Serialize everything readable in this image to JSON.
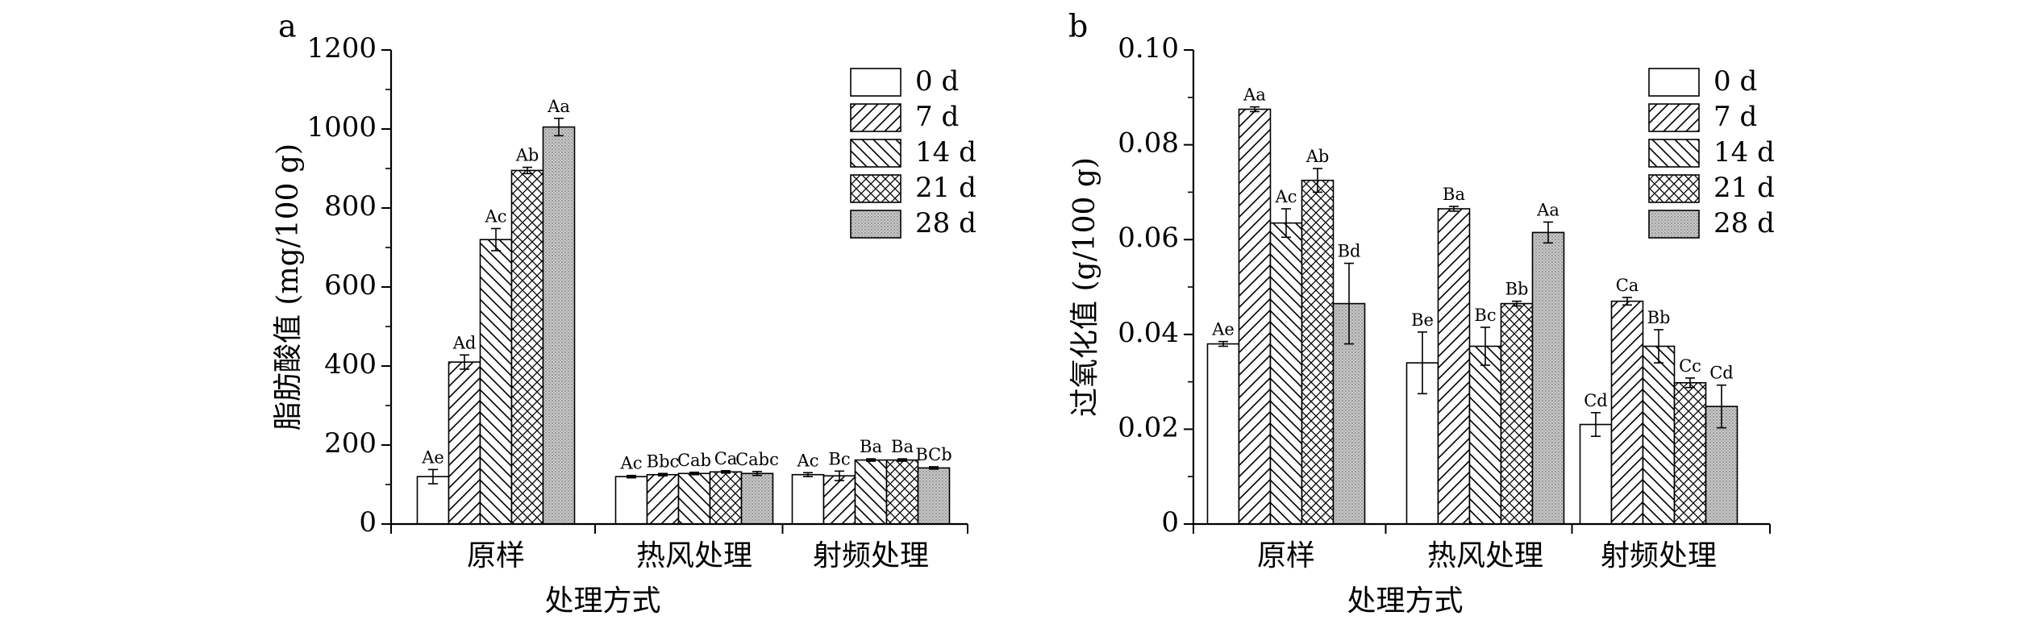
{
  "chart_data": [
    {
      "type": "bar",
      "panel_label": "a",
      "categories": [
        "原样",
        "热风处理",
        "射频处理"
      ],
      "xlabel": "处理方式",
      "ylabel": "脂肪酸值 (mg/100 g)",
      "ylim": [
        0,
        1200
      ],
      "yticks": [
        "0",
        "200",
        "400",
        "600",
        "800",
        "1000",
        "1200"
      ],
      "ytick_values": [
        0,
        200,
        400,
        600,
        800,
        1000,
        1200
      ],
      "legend_position": "top-right",
      "series": [
        {
          "name": "0 d",
          "values": [
            120,
            120,
            125
          ],
          "errors": [
            18,
            3,
            5
          ],
          "letters": [
            "Ae",
            "Ac",
            "Ac"
          ],
          "fill": "white"
        },
        {
          "name": "7 d",
          "values": [
            410,
            125,
            122
          ],
          "errors": [
            18,
            3,
            12
          ],
          "letters": [
            "Ad",
            "Bbc",
            "Bc"
          ],
          "fill": "diag-right"
        },
        {
          "name": "14 d",
          "values": [
            720,
            128,
            162
          ],
          "errors": [
            28,
            3,
            3
          ],
          "letters": [
            "Ac",
            "Cab",
            "Ba"
          ],
          "fill": "diag-left"
        },
        {
          "name": "21 d",
          "values": [
            895,
            132,
            162
          ],
          "errors": [
            8,
            3,
            3
          ],
          "letters": [
            "Ab",
            "Ca",
            "Ba"
          ],
          "fill": "cross"
        },
        {
          "name": "28 d",
          "values": [
            1005,
            128,
            142
          ],
          "errors": [
            22,
            5,
            3
          ],
          "letters": [
            "Aa",
            "Cabc",
            "BCb"
          ],
          "fill": "gray"
        }
      ]
    },
    {
      "type": "bar",
      "panel_label": "b",
      "categories": [
        "原样",
        "热风处理",
        "射频处理"
      ],
      "xlabel": "处理方式",
      "ylabel": "过氧化值 (g/100 g)",
      "ylim": [
        0,
        0.1
      ],
      "yticks": [
        "0",
        "0.02",
        "0.04",
        "0.06",
        "0.08",
        "0.10"
      ],
      "ytick_values": [
        0,
        0.02,
        0.04,
        0.06,
        0.08,
        0.1
      ],
      "legend_position": "top-right",
      "series": [
        {
          "name": "0 d",
          "values": [
            0.038,
            0.034,
            0.021
          ],
          "errors": [
            0.0005,
            0.0065,
            0.0025
          ],
          "letters": [
            "Ae",
            "Be",
            "Cd"
          ],
          "fill": "white"
        },
        {
          "name": "7 d",
          "values": [
            0.0875,
            0.0665,
            0.047
          ],
          "errors": [
            0.0005,
            0.0005,
            0.0008
          ],
          "letters": [
            "Aa",
            "Ba",
            "Ca"
          ],
          "fill": "diag-right"
        },
        {
          "name": "14 d",
          "values": [
            0.0635,
            0.0375,
            0.0375
          ],
          "errors": [
            0.003,
            0.004,
            0.0035
          ],
          "letters": [
            "Ac",
            "Bc",
            "Bb"
          ],
          "fill": "diag-left"
        },
        {
          "name": "21 d",
          "values": [
            0.0725,
            0.0465,
            0.0298
          ],
          "errors": [
            0.0025,
            0.0005,
            0.001
          ],
          "letters": [
            "Ab",
            "Bb",
            "Cc"
          ],
          "fill": "cross"
        },
        {
          "name": "28 d",
          "values": [
            0.0465,
            0.0615,
            0.0248
          ],
          "errors": [
            0.0085,
            0.0022,
            0.0045
          ],
          "letters": [
            "Bd",
            "Aa",
            "Cd"
          ],
          "fill": "gray"
        }
      ]
    }
  ]
}
